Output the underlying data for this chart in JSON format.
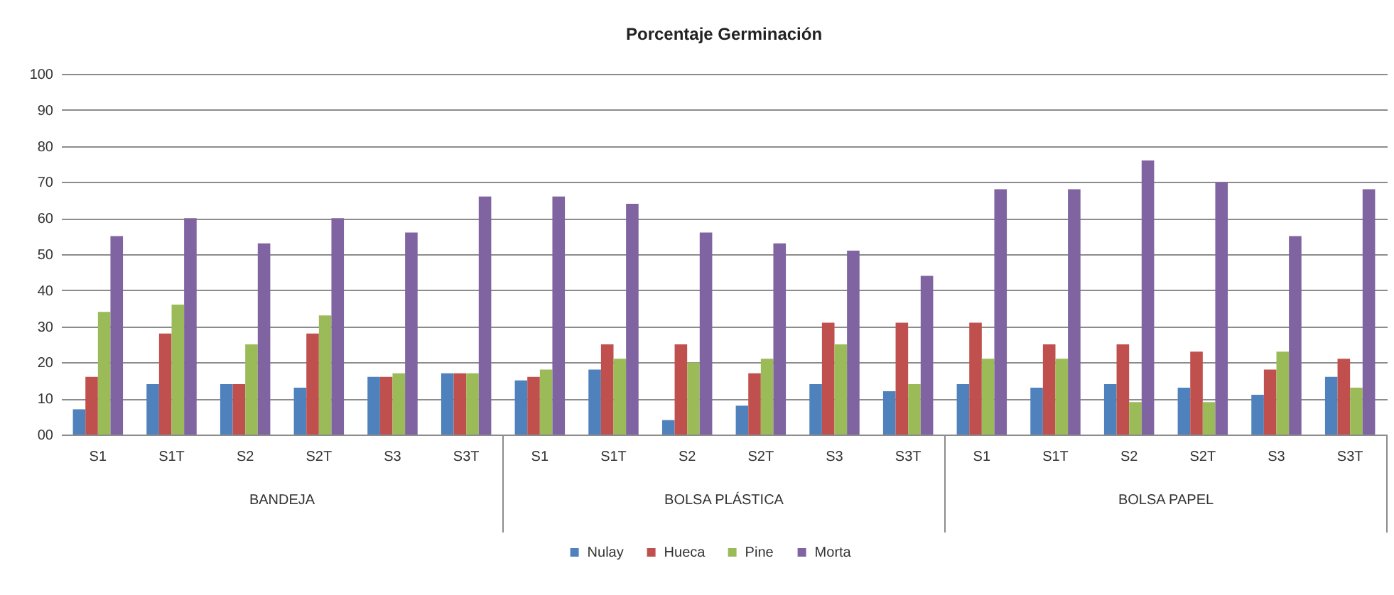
{
  "chart_data": {
    "type": "bar",
    "title": "Porcentaje Germinación",
    "categories": [
      "S1",
      "S1T",
      "S2",
      "S2T",
      "S3",
      "S3T",
      "S1",
      "S1T",
      "S2",
      "S2T",
      "S3",
      "S3T",
      "S1",
      "S1T",
      "S2",
      "S2T",
      "S3",
      "S3T"
    ],
    "series": [
      {
        "name": "Nulay",
        "color": "#4f81bd",
        "values": [
          7,
          14,
          14,
          13,
          16,
          17,
          15,
          18,
          4,
          8,
          14,
          12,
          14,
          13,
          14,
          13,
          11,
          16
        ]
      },
      {
        "name": "Hueca",
        "color": "#c0504d",
        "values": [
          16,
          28,
          14,
          28,
          16,
          17,
          16,
          25,
          25,
          17,
          31,
          31,
          31,
          25,
          25,
          23,
          18,
          21
        ]
      },
      {
        "name": "Pine",
        "color": "#9bbb59",
        "values": [
          34,
          36,
          25,
          33,
          17,
          17,
          18,
          21,
          20,
          21,
          25,
          14,
          21,
          21,
          9,
          9,
          23,
          13
        ]
      },
      {
        "name": "Morta",
        "color": "#8064a2",
        "values": [
          55,
          60,
          53,
          60,
          56,
          66,
          66,
          64,
          56,
          53,
          51,
          44,
          68,
          68,
          76,
          70,
          55,
          68
        ]
      }
    ],
    "ylim": [
      0,
      100
    ],
    "yticks": [
      {
        "value": 0,
        "label": "00"
      },
      10,
      20,
      30,
      40,
      50,
      60,
      70,
      80,
      90,
      100
    ],
    "grid": "y",
    "legend": "bottom",
    "annotations": [
      "BANDEJA",
      "BOLSA PLÁSTICA",
      "BOLSA PAPEL"
    ]
  }
}
